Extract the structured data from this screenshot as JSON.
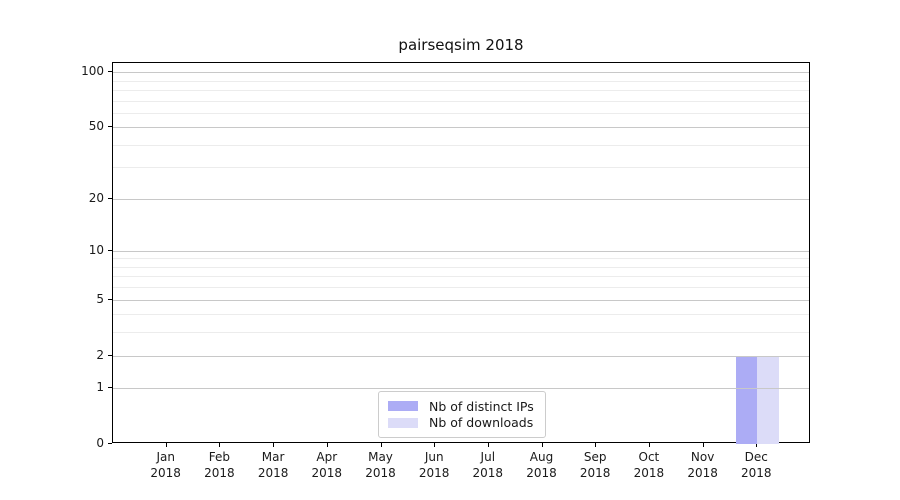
{
  "chart_data": {
    "type": "bar",
    "title": "pairseqsim 2018",
    "categories": [
      "Jan 2018",
      "Feb 2018",
      "Mar 2018",
      "Apr 2018",
      "May 2018",
      "Jun 2018",
      "Jul 2018",
      "Aug 2018",
      "Sep 2018",
      "Oct 2018",
      "Nov 2018",
      "Dec 2018"
    ],
    "series": [
      {
        "name": "Nb of distinct IPs",
        "color": "#acacf5",
        "values": [
          0,
          0,
          0,
          0,
          0,
          0,
          0,
          0,
          0,
          0,
          0,
          2
        ]
      },
      {
        "name": "Nb of downloads",
        "color": "#dcdcf8",
        "values": [
          0,
          0,
          0,
          0,
          0,
          0,
          0,
          0,
          0,
          0,
          0,
          2
        ]
      }
    ],
    "xlabel": "",
    "ylabel": "",
    "y_scale": "log1p",
    "y_major_ticks": [
      0,
      1,
      2,
      5,
      10,
      20,
      50,
      100
    ],
    "y_minor_ticks": [
      3,
      4,
      6,
      7,
      8,
      9,
      30,
      40,
      60,
      70,
      80,
      90
    ],
    "ylim": [
      0,
      112
    ],
    "grid": true,
    "legend": {
      "position": "lower center",
      "entries": [
        "Nb of distinct IPs",
        "Nb of downloads"
      ]
    },
    "colors": {
      "grid_major": "#c8c8c8",
      "grid_minor": "#ececec",
      "spine": "#000000",
      "text": "#1a1a1a",
      "background": "#ffffff"
    }
  }
}
